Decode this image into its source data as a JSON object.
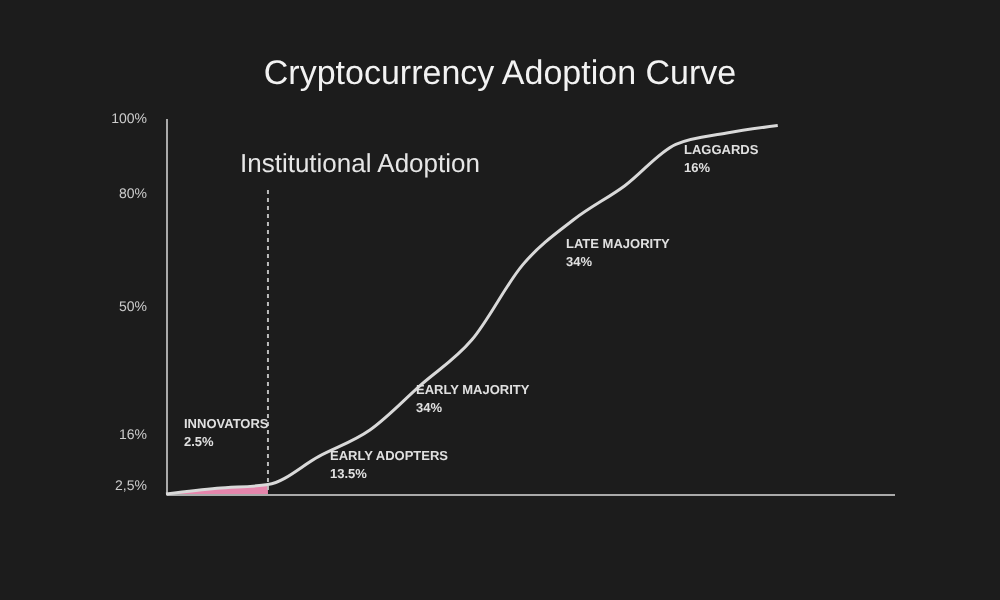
{
  "chart_data": {
    "type": "line",
    "title": "Cryptocurrency Adoption Curve",
    "categories": [
      null,
      null,
      null,
      null,
      null,
      null,
      null,
      null,
      null,
      null,
      null,
      null,
      null
    ],
    "series": [
      {
        "color": "#d9d9d9",
        "values": [
          0,
          1.5,
          2.5,
          10,
          17,
          29,
          41,
          61,
          73,
          82,
          93,
          96,
          98
        ]
      },
      {
        "type": "area",
        "color": "#f08cb4",
        "values": [
          0,
          1.5,
          2.5,
          null,
          null,
          null,
          null,
          null,
          null,
          null,
          null,
          null,
          null
        ]
      }
    ],
    "ylim": [
      0,
      100
    ],
    "yticks": [
      {
        "value": 2.5,
        "label": "2,5%"
      },
      {
        "value": 16,
        "label": "16%"
      },
      {
        "value": 50,
        "label": "50%"
      },
      {
        "value": 80,
        "label": "80%"
      },
      {
        "value": 100,
        "label": "100%"
      }
    ],
    "tick_labels": "y",
    "grid": false,
    "marker": "none",
    "annotations": [
      "Institutional Adoption",
      "INNOVATORS\n2.5%",
      "EARLY ADOPTERS\n13.5%",
      "EARLY MAJORITY\n34%",
      "LATE MAJORITY\n34%",
      "LAGGARDS\n16%"
    ]
  }
}
